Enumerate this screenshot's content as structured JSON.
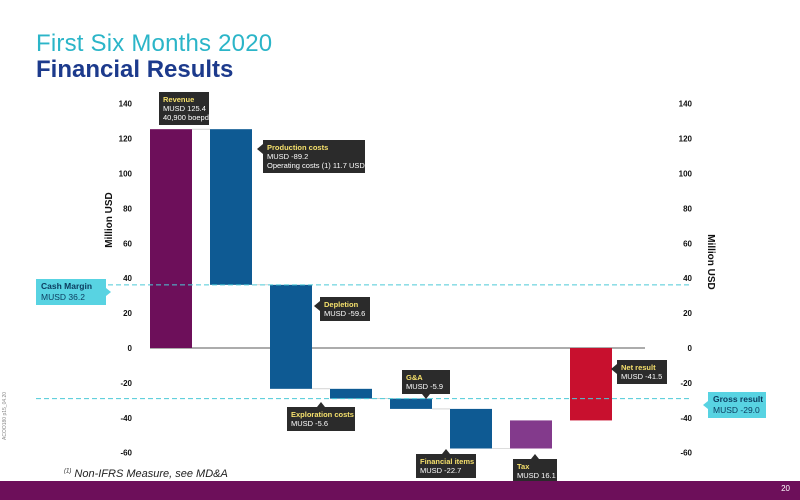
{
  "header": {
    "subtitle": "First Six Months 2020",
    "title": "Financial Results"
  },
  "footnote": {
    "marker": "(1)",
    "text": "Non-IFRS Measure, see MD&A"
  },
  "side_code": "ACOO180 p15_04.20",
  "page_number": "20",
  "colors": {
    "revenue": "#6d0f5a",
    "cost": "#0e5a93",
    "tax": "#833a8c",
    "net_result": "#c8102e",
    "reference_line": "#4cc9d8",
    "reference_box": "#58d3e2",
    "label_box": "#2b2b2b",
    "label_head": "#f5e06c",
    "bottom_bar": "#6d0f5a"
  },
  "chart_data": {
    "type": "waterfall",
    "ylabel": "Million USD",
    "ylim": [
      -65,
      145
    ],
    "yticks": [
      140,
      120,
      100,
      80,
      60,
      40,
      20,
      0,
      -20,
      -40,
      -60
    ],
    "grid": false,
    "steps": [
      {
        "name": "Revenue",
        "start": 0,
        "end": 125.4,
        "color_key": "revenue",
        "lines": [
          "MUSD 125.4",
          "40,900 boepd"
        ]
      },
      {
        "name": "Production costs",
        "start": 125.4,
        "end": 36.2,
        "color_key": "cost",
        "lines": [
          "MUSD -89.2",
          "Operating costs (1) 11.7 USD/boe"
        ]
      },
      {
        "name": "Depletion",
        "start": 36.2,
        "end": -23.4,
        "color_key": "cost",
        "lines": [
          "MUSD -59.6"
        ]
      },
      {
        "name": "Exploration costs",
        "start": -23.4,
        "end": -29.0,
        "color_key": "cost",
        "lines": [
          "MUSD -5.6"
        ]
      },
      {
        "name": "G&A",
        "start": -29.0,
        "end": -34.9,
        "color_key": "cost",
        "lines": [
          "MUSD -5.9"
        ]
      },
      {
        "name": "Financial items",
        "start": -34.9,
        "end": -57.6,
        "color_key": "cost",
        "lines": [
          "MUSD -22.7"
        ]
      },
      {
        "name": "Tax",
        "start": -57.6,
        "end": -41.5,
        "color_key": "tax",
        "lines": [
          "MUSD 16.1"
        ]
      },
      {
        "name": "Net result",
        "start": 0,
        "end": -41.5,
        "color_key": "net_result",
        "lines": [
          "MUSD -41.5"
        ]
      }
    ],
    "reference_lines": [
      {
        "name": "Cash Margin",
        "value": 36.2,
        "text": "MUSD 36.2",
        "side": "left"
      },
      {
        "name": "Gross result",
        "value": -29.0,
        "text": "MUSD -29.0",
        "side": "right"
      }
    ]
  }
}
